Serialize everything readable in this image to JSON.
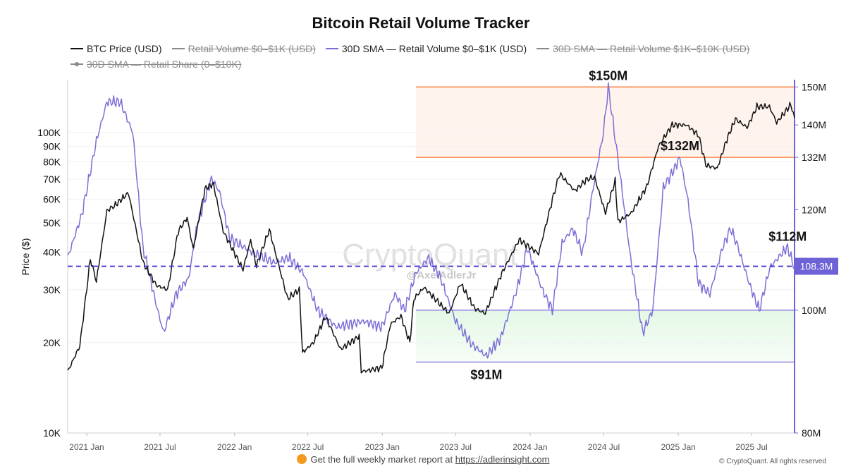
{
  "title": "Bitcoin Retail Volume Tracker",
  "legend": [
    {
      "label": "BTC Price (USD)",
      "color": "#111111",
      "active": true
    },
    {
      "label": "Retail Volume $0–$1K (USD)",
      "color": "#8a8a8a",
      "active": false
    },
    {
      "label": "30D SMA — Retail Volume $0–$1K (USD)",
      "color": "#7b6fd6",
      "active": true
    },
    {
      "label": "30D SMA — Retail Volume $1K–$10K (USD)",
      "color": "#8a8a8a",
      "active": false
    },
    {
      "label": "30D SMA — Retail Share (0–$10K)",
      "color": "#8a8a8a",
      "active": false
    }
  ],
  "watermark": {
    "brand": "CryptoQuant",
    "handle": "@AxelAdlerJr"
  },
  "footer": {
    "text": "Get the full weekly market report at ",
    "link": "https://adlerinsight.com"
  },
  "copyright": "© CryptoQuant. All rights reserved",
  "chart_data": {
    "type": "line",
    "x_axis": {
      "ticks": [
        "2021 Jan",
        "2021 Jul",
        "2022 Jan",
        "2022 Jul",
        "2023 Jan",
        "2023 Jul",
        "2024 Jan",
        "2024 Jul",
        "2025 Jan",
        "2025 Jul"
      ],
      "range": [
        "2020-11-15",
        "2025-10-15"
      ]
    },
    "y_left": {
      "label": "Price ($)",
      "scale": "log",
      "range": [
        10000,
        150000
      ],
      "ticks": [
        {
          "v": 10000,
          "t": "10K"
        },
        {
          "v": 20000,
          "t": "20K"
        },
        {
          "v": 30000,
          "t": "30K"
        },
        {
          "v": 40000,
          "t": "40K"
        },
        {
          "v": 50000,
          "t": "50K"
        },
        {
          "v": 60000,
          "t": "60K"
        },
        {
          "v": 70000,
          "t": "70K"
        },
        {
          "v": 80000,
          "t": "80K"
        },
        {
          "v": 90000,
          "t": "90K"
        },
        {
          "v": 100000,
          "t": "100K"
        }
      ]
    },
    "y_right": {
      "scale": "log",
      "range": [
        80,
        152
      ],
      "ticks": [
        {
          "v": 80,
          "t": "80M"
        },
        {
          "v": 100,
          "t": "100M"
        },
        {
          "v": 120,
          "t": "120M"
        },
        {
          "v": 132,
          "t": "132M"
        },
        {
          "v": 140,
          "t": "140M"
        },
        {
          "v": 150,
          "t": "150M"
        }
      ],
      "current": {
        "v": 108.3,
        "t": "108.3M"
      }
    },
    "series": [
      {
        "name": "BTC Price (USD)",
        "axis": "left",
        "color": "#111111",
        "points": [
          [
            "2020-11-15",
            16000
          ],
          [
            "2020-12-15",
            19500
          ],
          [
            "2021-01-10",
            38000
          ],
          [
            "2021-01-25",
            32000
          ],
          [
            "2021-02-20",
            55000
          ],
          [
            "2021-03-10",
            57000
          ],
          [
            "2021-04-14",
            63000
          ],
          [
            "2021-05-20",
            37000
          ],
          [
            "2021-06-22",
            31000
          ],
          [
            "2021-07-20",
            30000
          ],
          [
            "2021-08-15",
            47000
          ],
          [
            "2021-09-06",
            52000
          ],
          [
            "2021-09-21",
            41000
          ],
          [
            "2021-10-20",
            65000
          ],
          [
            "2021-11-10",
            67500
          ],
          [
            "2021-12-04",
            47000
          ],
          [
            "2022-01-22",
            35000
          ],
          [
            "2022-02-10",
            44000
          ],
          [
            "2022-02-24",
            36000
          ],
          [
            "2022-03-28",
            47500
          ],
          [
            "2022-05-12",
            28000
          ],
          [
            "2022-06-10",
            30000
          ],
          [
            "2022-06-18",
            18500
          ],
          [
            "2022-07-15",
            20000
          ],
          [
            "2022-08-14",
            24400
          ],
          [
            "2022-09-20",
            19000
          ],
          [
            "2022-11-05",
            21000
          ],
          [
            "2022-11-10",
            16000
          ],
          [
            "2022-12-31",
            16500
          ],
          [
            "2023-01-21",
            23000
          ],
          [
            "2023-02-16",
            24500
          ],
          [
            "2023-03-10",
            20000
          ],
          [
            "2023-03-20",
            28000
          ],
          [
            "2023-04-14",
            30500
          ],
          [
            "2023-06-15",
            25000
          ],
          [
            "2023-07-13",
            31500
          ],
          [
            "2023-08-17",
            26000
          ],
          [
            "2023-09-12",
            25000
          ],
          [
            "2023-10-23",
            34000
          ],
          [
            "2023-12-05",
            44000
          ],
          [
            "2024-01-22",
            39500
          ],
          [
            "2024-02-28",
            62000
          ],
          [
            "2024-03-14",
            73000
          ],
          [
            "2024-04-20",
            64000
          ],
          [
            "2024-05-21",
            70000
          ],
          [
            "2024-06-08",
            71000
          ],
          [
            "2024-07-05",
            54000
          ],
          [
            "2024-07-29",
            69000
          ],
          [
            "2024-08-05",
            50500
          ],
          [
            "2024-09-07",
            54000
          ],
          [
            "2024-10-15",
            66000
          ],
          [
            "2024-11-13",
            90000
          ],
          [
            "2024-12-17",
            106000
          ],
          [
            "2025-01-21",
            106000
          ],
          [
            "2025-02-20",
            98000
          ],
          [
            "2025-03-10",
            78000
          ],
          [
            "2025-04-07",
            76000
          ],
          [
            "2025-05-01",
            95000
          ],
          [
            "2025-05-22",
            111000
          ],
          [
            "2025-06-20",
            104000
          ],
          [
            "2025-07-14",
            122000
          ],
          [
            "2025-08-14",
            122000
          ],
          [
            "2025-09-01",
            108000
          ],
          [
            "2025-10-06",
            124000
          ],
          [
            "2025-10-15",
            112000
          ]
        ]
      },
      {
        "name": "30D SMA — Retail Volume $0–$1K (USD)",
        "axis": "right",
        "color": "#7b6fd6",
        "points": [
          [
            "2020-11-15",
            110
          ],
          [
            "2020-12-20",
            119
          ],
          [
            "2021-01-25",
            136
          ],
          [
            "2021-02-20",
            146
          ],
          [
            "2021-03-25",
            146
          ],
          [
            "2021-04-25",
            138
          ],
          [
            "2021-05-20",
            112
          ],
          [
            "2021-06-25",
            100
          ],
          [
            "2021-07-10",
            96
          ],
          [
            "2021-08-10",
            103
          ],
          [
            "2021-09-10",
            106
          ],
          [
            "2021-10-01",
            117
          ],
          [
            "2021-11-05",
            127
          ],
          [
            "2021-11-25",
            124
          ],
          [
            "2021-12-20",
            114
          ],
          [
            "2022-02-15",
            111
          ],
          [
            "2022-04-10",
            109
          ],
          [
            "2022-05-15",
            110
          ],
          [
            "2022-06-20",
            107
          ],
          [
            "2022-07-25",
            100
          ],
          [
            "2022-09-10",
            97
          ],
          [
            "2022-11-15",
            98
          ],
          [
            "2022-12-31",
            97
          ],
          [
            "2023-02-01",
            103
          ],
          [
            "2023-02-25",
            100
          ],
          [
            "2023-03-25",
            107
          ],
          [
            "2023-04-25",
            110
          ],
          [
            "2023-05-25",
            106
          ],
          [
            "2023-07-01",
            98
          ],
          [
            "2023-08-10",
            94
          ],
          [
            "2023-09-15",
            92
          ],
          [
            "2023-10-20",
            95
          ],
          [
            "2023-11-30",
            104
          ],
          [
            "2023-12-25",
            112
          ],
          [
            "2024-01-30",
            104
          ],
          [
            "2024-02-25",
            100
          ],
          [
            "2024-03-20",
            113
          ],
          [
            "2024-04-15",
            116
          ],
          [
            "2024-05-10",
            111
          ],
          [
            "2024-06-05",
            125
          ],
          [
            "2024-06-30",
            138
          ],
          [
            "2024-07-12",
            150
          ],
          [
            "2024-08-10",
            128
          ],
          [
            "2024-09-05",
            110
          ],
          [
            "2024-10-05",
            96
          ],
          [
            "2024-10-30",
            100
          ],
          [
            "2024-11-25",
            125
          ],
          [
            "2024-12-15",
            128
          ],
          [
            "2025-01-05",
            132
          ],
          [
            "2025-01-25",
            122
          ],
          [
            "2025-02-20",
            105
          ],
          [
            "2025-03-20",
            103
          ],
          [
            "2025-04-20",
            112
          ],
          [
            "2025-05-10",
            116
          ],
          [
            "2025-05-25",
            113
          ],
          [
            "2025-06-25",
            105
          ],
          [
            "2025-07-20",
            100
          ],
          [
            "2025-08-15",
            108
          ],
          [
            "2025-09-15",
            111
          ],
          [
            "2025-09-28",
            112
          ],
          [
            "2025-10-15",
            108
          ]
        ]
      }
    ],
    "zones": [
      {
        "kind": "resistance",
        "from": 132,
        "to": 150,
        "start": "2023-03-25",
        "color": "#ff8a4c"
      },
      {
        "kind": "support",
        "from": 91,
        "to": 100,
        "start": "2023-03-25",
        "color": "#9c8fe6"
      }
    ],
    "reference_line": {
      "value": 108.3,
      "axis": "right",
      "color": "#4a3fd1"
    },
    "annotations": [
      {
        "text": "$150M",
        "x": "2024-07-12",
        "y": 150,
        "placement": "above"
      },
      {
        "text": "$132M",
        "x": "2025-01-05",
        "y": 132,
        "placement": "above"
      },
      {
        "text": "$112M",
        "x": "2025-09-28",
        "y": 112,
        "placement": "above"
      },
      {
        "text": "$91M",
        "x": "2023-09-15",
        "y": 91,
        "placement": "below"
      }
    ]
  }
}
